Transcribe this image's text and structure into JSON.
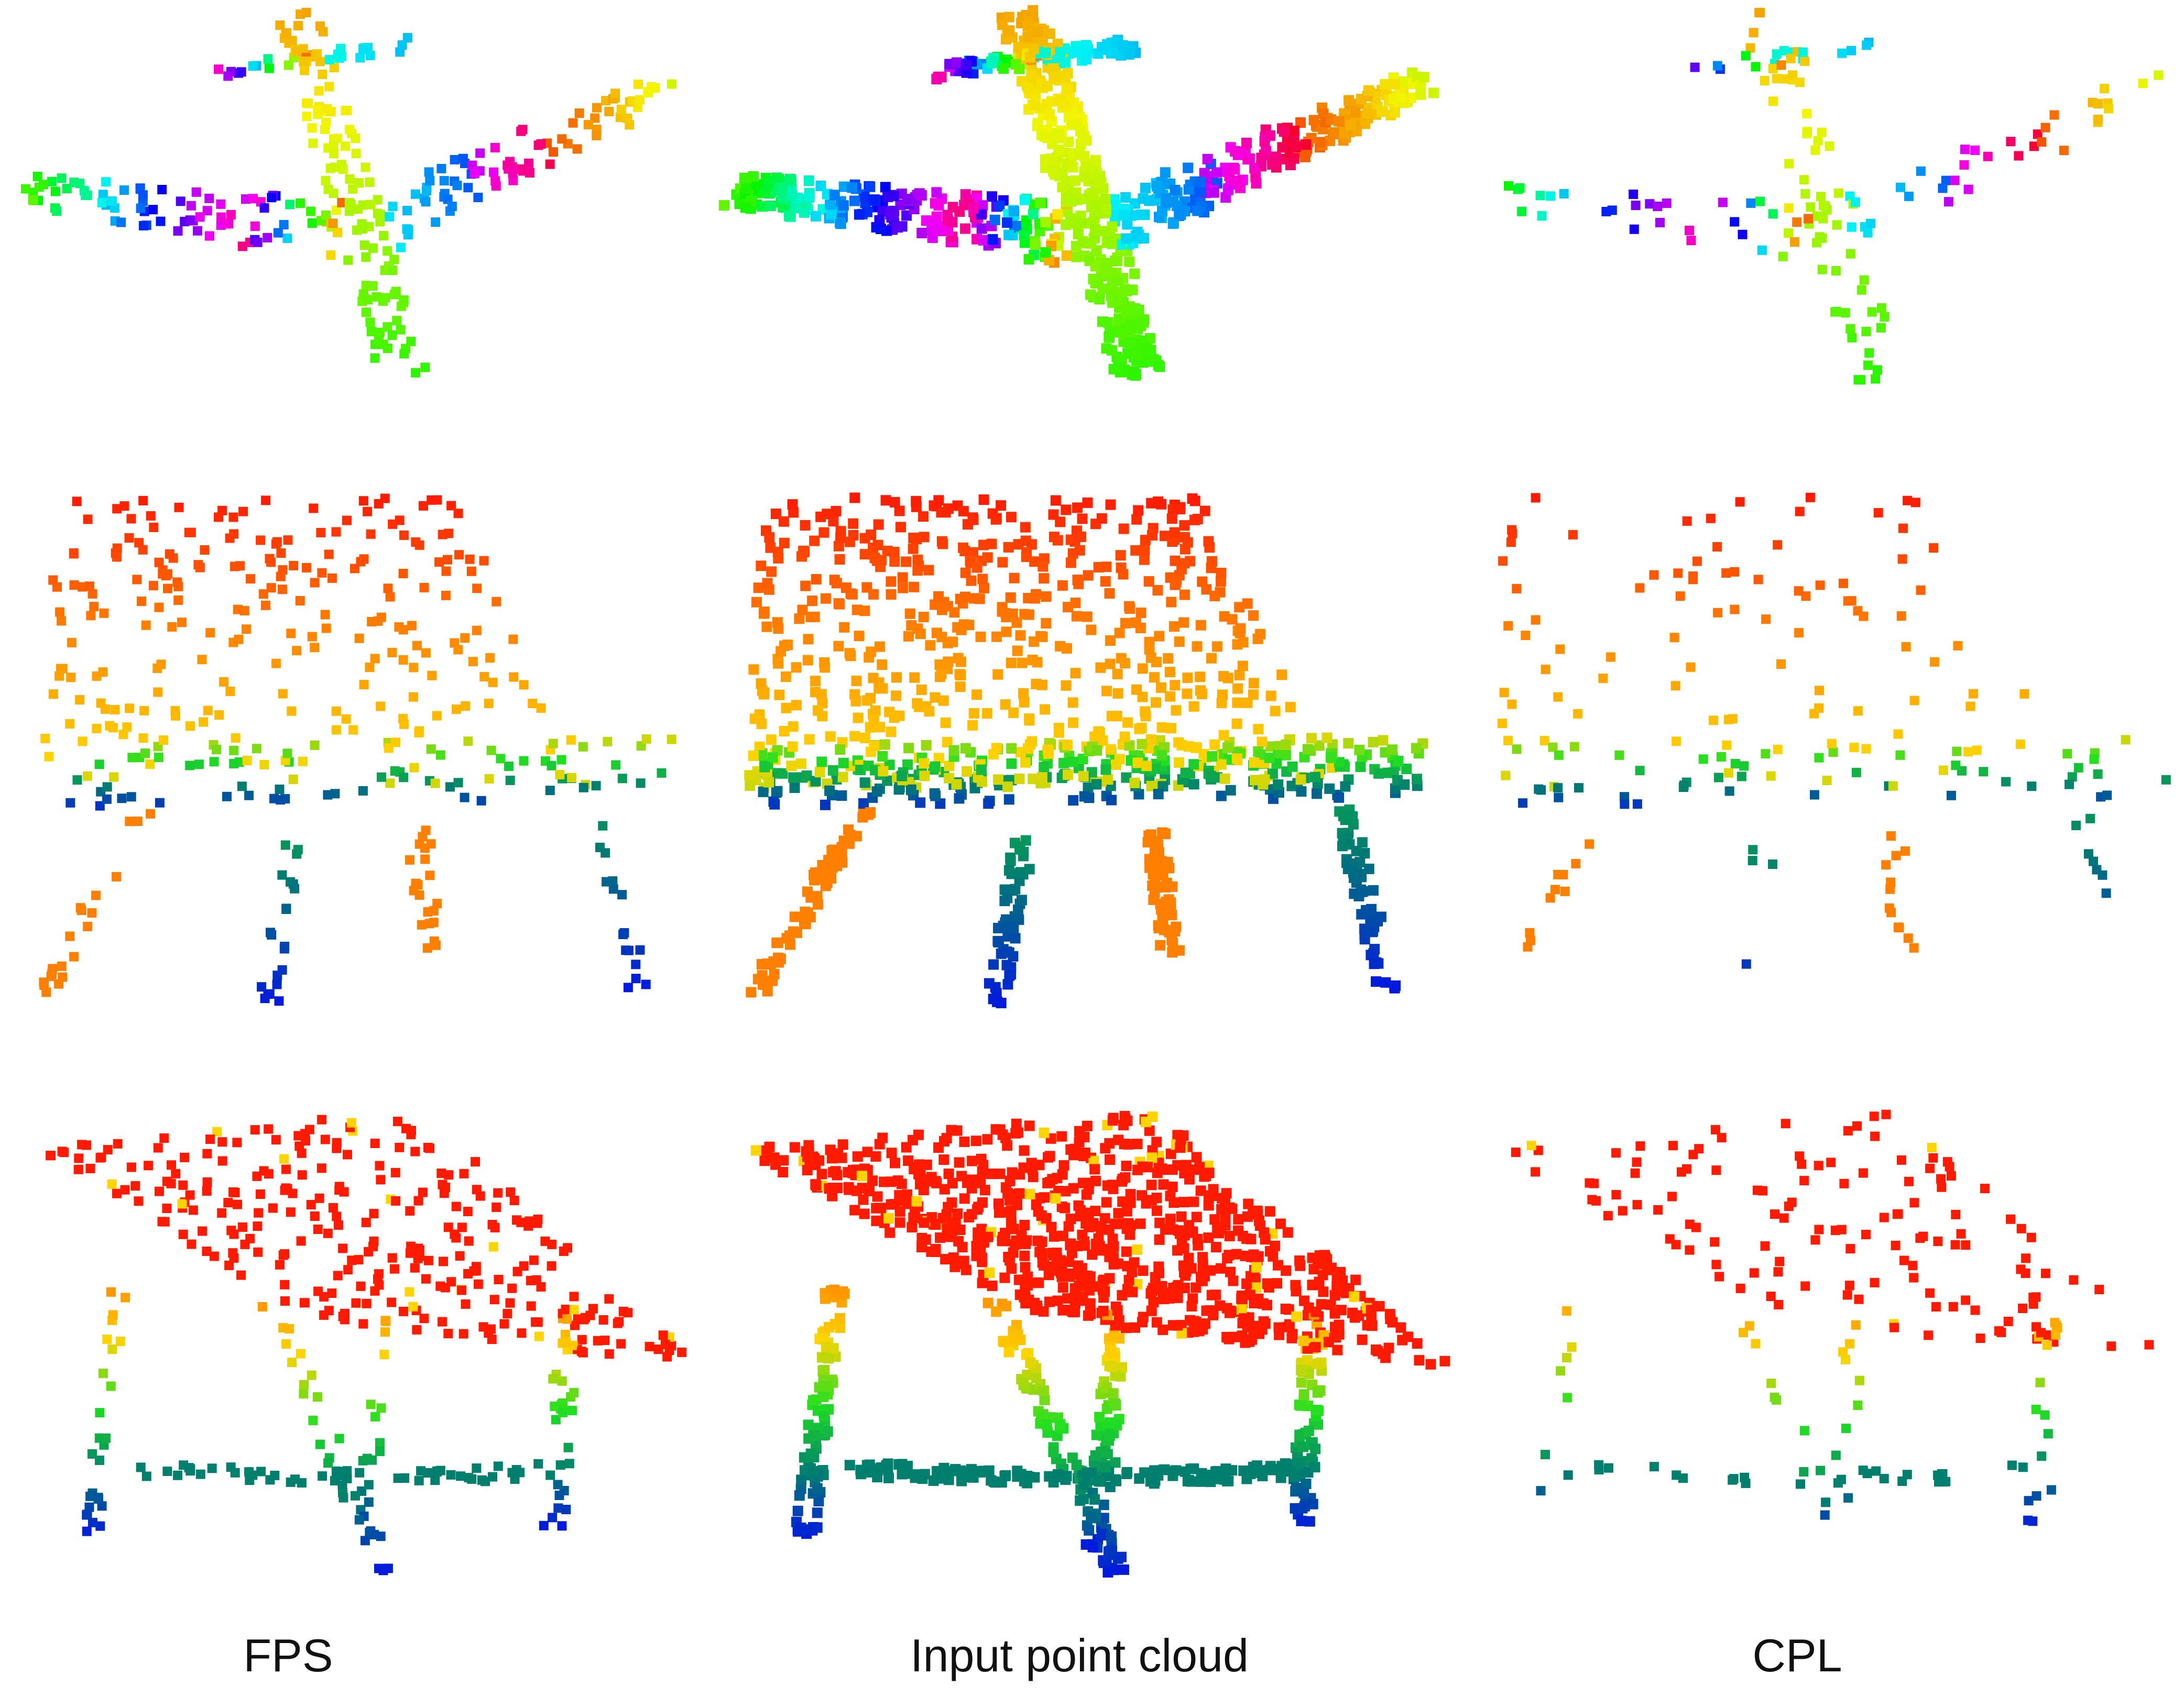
{
  "columns": [
    {
      "label": "FPS",
      "density": "sparse"
    },
    {
      "label": "Input point cloud",
      "density": "dense"
    },
    {
      "label": "CPL",
      "density": "very-sparse"
    }
  ],
  "rows": [
    {
      "object": "airplane",
      "palette": "hue-rainbow"
    },
    {
      "object": "chair",
      "palette": "height-gradient"
    },
    {
      "object": "table",
      "palette": "height-gradient"
    }
  ],
  "colors": {
    "red": "#ff1a00",
    "orange": "#ff7f00",
    "yellow": "#ffd400",
    "green": "#20e020",
    "teal": "#007f6f",
    "blue": "#0018e0",
    "magenta": "#d000c8"
  },
  "captions": {
    "fps": "FPS",
    "input": "Input point cloud",
    "cpl": "CPL"
  }
}
